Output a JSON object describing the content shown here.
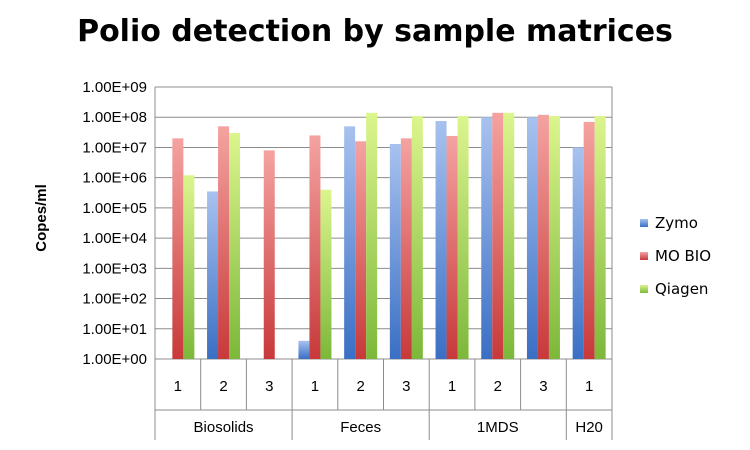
{
  "chart_data": {
    "type": "bar",
    "title": "Polio detection by sample matrices",
    "ylabel": "Copes/ml",
    "xlabel": "",
    "y_scale": "log",
    "ylim": [
      1,
      1000000000
    ],
    "y_ticks": [
      "1.00E+00",
      "1.00E+01",
      "1.00E+02",
      "1.00E+03",
      "1.00E+04",
      "1.00E+05",
      "1.00E+06",
      "1.00E+07",
      "1.00E+08",
      "1.00E+09"
    ],
    "groups": [
      {
        "label": "Biosolids",
        "categories": [
          "1",
          "2",
          "3"
        ]
      },
      {
        "label": "Feces",
        "categories": [
          "1",
          "2",
          "3"
        ]
      },
      {
        "label": "1MDS",
        "categories": [
          "1",
          "2",
          "3"
        ]
      },
      {
        "label": "H20",
        "categories": [
          "1"
        ]
      }
    ],
    "series": [
      {
        "name": "Zymo",
        "color": "#4f81bd",
        "values": [
          null,
          350000,
          null,
          4,
          50000000,
          13000000,
          75000000,
          100000000,
          100000000,
          10000000
        ]
      },
      {
        "name": "MO BIO",
        "color": "#c0504d",
        "values": [
          20000000,
          50000000,
          8000000,
          25000000,
          16000000,
          20000000,
          24000000,
          140000000,
          120000000,
          70000000
        ]
      },
      {
        "name": "Qiagen",
        "color": "#9bbb59",
        "values": [
          1200000,
          30000000,
          null,
          400000,
          140000000,
          110000000,
          110000000,
          140000000,
          110000000,
          110000000
        ]
      }
    ],
    "grid": true,
    "legend_position": "right"
  }
}
